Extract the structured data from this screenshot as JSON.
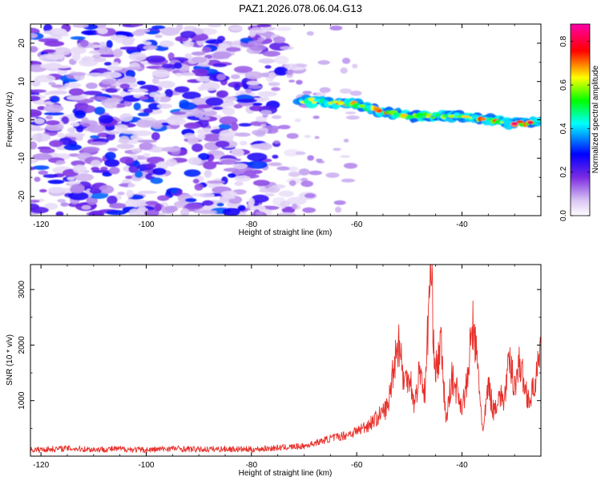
{
  "title": "PAZ1.2026.078.06.04.G13",
  "chart_data": [
    {
      "type": "heatmap",
      "name": "spectrogram",
      "xlabel": "Height of straight line (km)",
      "ylabel": "Frequency (Hz)",
      "xlim": [
        -122,
        -25
      ],
      "ylim": [
        -25,
        25
      ],
      "xticks": [
        -120,
        -100,
        -80,
        -60,
        -40
      ],
      "yticks": [
        -20,
        -10,
        0,
        10,
        20
      ],
      "colorbar": {
        "label": "Normalized spectral amplitude",
        "range": [
          0.0,
          0.88
        ],
        "ticks": [
          0.0,
          0.2,
          0.4,
          0.6,
          0.8
        ],
        "colors": [
          "#ffffff",
          "#7b2be2",
          "#0000ff",
          "#00ffff",
          "#00ff00",
          "#ffff00",
          "#ff0000",
          "#ff00ff"
        ]
      },
      "noise_region": {
        "x_range": [
          -122,
          -69
        ],
        "freq_range": [
          -25,
          25
        ],
        "amplitude_max": 0.3
      },
      "signal_track": {
        "points": [
          {
            "x": -70,
            "freq": 5.0
          },
          {
            "x": -60,
            "freq": 4.0
          },
          {
            "x": -55,
            "freq": 2.0
          },
          {
            "x": -50,
            "freq": 1.0
          },
          {
            "x": -40,
            "freq": 1.0
          },
          {
            "x": -30,
            "freq": -1.0
          },
          {
            "x": -25,
            "freq": -0.5
          }
        ],
        "amplitude_range": [
          0.4,
          0.88
        ]
      }
    },
    {
      "type": "line",
      "name": "snr",
      "xlabel": "Height of straight line (km)",
      "ylabel": "SNR (10 * v/v)",
      "xlim": [
        -122,
        -25
      ],
      "ylim": [
        0,
        3450
      ],
      "xticks": [
        -120,
        -100,
        -80,
        -60,
        -40
      ],
      "yticks": [
        1000,
        2000,
        3000
      ],
      "color": "#e8302a",
      "series": [
        {
          "name": "SNR",
          "x": [
            -122,
            -115,
            -110,
            -105,
            -100,
            -95,
            -90,
            -85,
            -80,
            -75,
            -70,
            -67,
            -65,
            -62,
            -60,
            -58,
            -56,
            -54,
            -53,
            -52,
            -51,
            -50,
            -49,
            -48,
            -47,
            -46,
            -45,
            -44,
            -43,
            -42,
            -41,
            -40,
            -39,
            -38,
            -37,
            -36,
            -35,
            -34,
            -33,
            -32,
            -31,
            -30,
            -29,
            -28,
            -27,
            -26,
            -25
          ],
          "y": [
            110,
            140,
            120,
            130,
            110,
            140,
            120,
            130,
            120,
            150,
            180,
            260,
            320,
            380,
            450,
            550,
            700,
            900,
            1650,
            2100,
            1300,
            1500,
            900,
            1600,
            1100,
            3450,
            1500,
            2000,
            600,
            1400,
            1200,
            900,
            1300,
            2400,
            1600,
            400,
            1300,
            800,
            1100,
            1000,
            1700,
            1300,
            1700,
            1200,
            1000,
            1400,
            1800
          ]
        }
      ]
    }
  ]
}
